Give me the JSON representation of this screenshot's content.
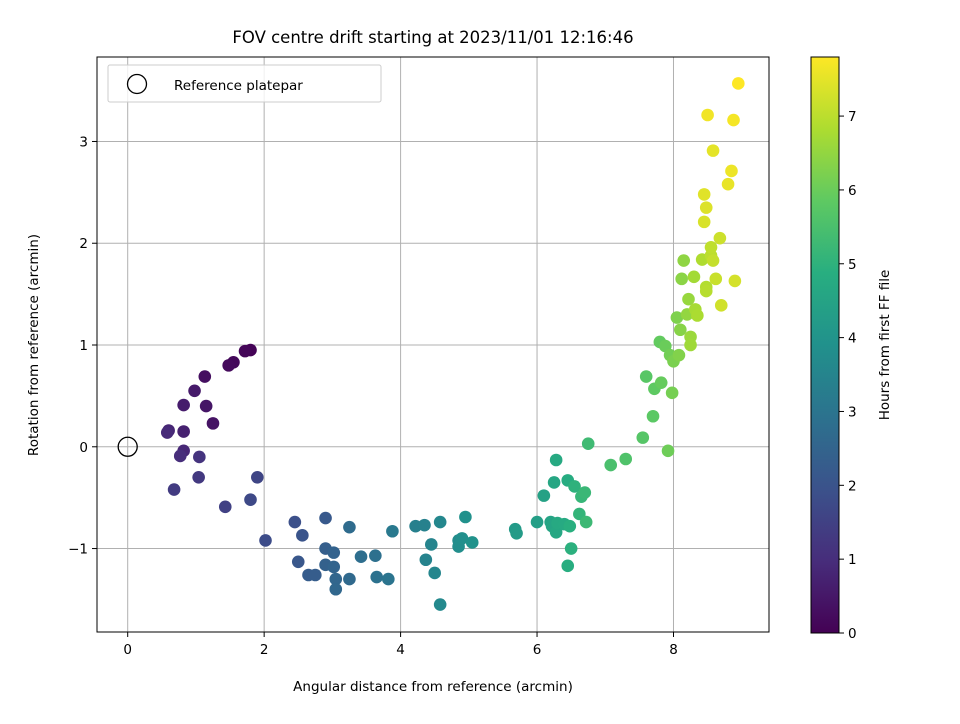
{
  "chart_data": {
    "type": "scatter",
    "title": "FOV centre drift starting at 2023/11/01 12:16:46",
    "xlabel": "Angular distance from reference (arcmin)",
    "ylabel": "Rotation from reference (arcmin)",
    "xlim": [
      -0.45,
      9.4
    ],
    "ylim": [
      -1.82,
      3.83
    ],
    "xticks": [
      0,
      2,
      4,
      6,
      8
    ],
    "yticks": [
      -1,
      0,
      1,
      2,
      3
    ],
    "xtick_labels": [
      "0",
      "2",
      "4",
      "6",
      "8"
    ],
    "ytick_labels": [
      "−1",
      "0",
      "1",
      "2",
      "3"
    ],
    "grid": true,
    "legend": {
      "position": "upper-left",
      "entries": [
        "Reference platepar"
      ]
    },
    "colormap": "viridis",
    "colorbar": {
      "label": "Hours from first FF file",
      "range": [
        0,
        7.8
      ],
      "ticks": [
        0,
        1,
        2,
        3,
        4,
        5,
        6,
        7
      ],
      "tick_labels": [
        "0",
        "1",
        "2",
        "3",
        "4",
        "5",
        "6",
        "7"
      ]
    },
    "reference_point": {
      "x": 0,
      "y": 0
    },
    "points": [
      [
        1.8,
        0.95,
        0.05
      ],
      [
        1.72,
        0.94,
        0.1
      ],
      [
        1.55,
        0.83,
        0.15
      ],
      [
        1.48,
        0.8,
        0.2
      ],
      [
        1.13,
        0.69,
        0.3
      ],
      [
        1.25,
        0.23,
        0.4
      ],
      [
        1.15,
        0.4,
        0.45
      ],
      [
        0.98,
        0.55,
        0.55
      ],
      [
        0.82,
        0.41,
        0.6
      ],
      [
        0.82,
        0.15,
        0.7
      ],
      [
        0.6,
        0.16,
        0.8
      ],
      [
        0.82,
        -0.04,
        0.85
      ],
      [
        0.58,
        0.14,
        0.9
      ],
      [
        0.77,
        -0.09,
        1.0
      ],
      [
        1.05,
        -0.1,
        1.15
      ],
      [
        1.04,
        -0.3,
        1.3
      ],
      [
        0.68,
        -0.42,
        1.35
      ],
      [
        1.43,
        -0.59,
        1.5
      ],
      [
        1.9,
        -0.3,
        1.6
      ],
      [
        1.8,
        -0.52,
        1.7
      ],
      [
        2.02,
        -0.92,
        1.8
      ],
      [
        2.45,
        -0.74,
        1.9
      ],
      [
        2.56,
        -0.87,
        2.0
      ],
      [
        2.5,
        -1.13,
        2.1
      ],
      [
        2.9,
        -0.7,
        2.15
      ],
      [
        2.65,
        -1.26,
        2.25
      ],
      [
        2.75,
        -1.26,
        2.3
      ],
      [
        2.9,
        -1.0,
        2.35
      ],
      [
        2.9,
        -1.16,
        2.4
      ],
      [
        3.02,
        -1.04,
        2.45
      ],
      [
        3.02,
        -1.18,
        2.5
      ],
      [
        3.05,
        -1.3,
        2.55
      ],
      [
        3.05,
        -1.4,
        2.6
      ],
      [
        3.25,
        -1.3,
        2.65
      ],
      [
        3.25,
        -0.79,
        2.7
      ],
      [
        3.42,
        -1.08,
        2.8
      ],
      [
        3.63,
        -1.07,
        2.85
      ],
      [
        3.65,
        -1.28,
        2.9
      ],
      [
        3.82,
        -1.3,
        3.0
      ],
      [
        3.88,
        -0.83,
        3.15
      ],
      [
        4.22,
        -0.78,
        3.35
      ],
      [
        4.35,
        -0.77,
        3.4
      ],
      [
        4.37,
        -1.11,
        3.45
      ],
      [
        4.45,
        -0.96,
        3.5
      ],
      [
        4.5,
        -1.24,
        3.55
      ],
      [
        4.58,
        -0.74,
        3.6
      ],
      [
        4.58,
        -1.55,
        3.65
      ],
      [
        4.85,
        -0.92,
        3.75
      ],
      [
        4.85,
        -0.98,
        3.8
      ],
      [
        4.9,
        -0.9,
        3.85
      ],
      [
        4.95,
        -0.69,
        3.9
      ],
      [
        5.05,
        -0.94,
        3.95
      ],
      [
        5.68,
        -0.81,
        4.2
      ],
      [
        5.7,
        -0.85,
        4.25
      ],
      [
        6.0,
        -0.74,
        4.35
      ],
      [
        6.1,
        -0.48,
        4.45
      ],
      [
        6.2,
        -0.74,
        4.5
      ],
      [
        6.22,
        -0.78,
        4.55
      ],
      [
        6.25,
        -0.35,
        4.6
      ],
      [
        6.28,
        -0.84,
        4.65
      ],
      [
        6.28,
        -0.13,
        4.7
      ],
      [
        6.3,
        -0.75,
        4.72
      ],
      [
        6.4,
        -0.76,
        4.75
      ],
      [
        6.45,
        -0.33,
        4.8
      ],
      [
        6.45,
        -1.17,
        4.85
      ],
      [
        6.48,
        -0.78,
        4.9
      ],
      [
        6.5,
        -1.0,
        4.95
      ],
      [
        6.55,
        -0.39,
        5.0
      ],
      [
        6.62,
        -0.66,
        5.1
      ],
      [
        6.65,
        -0.49,
        5.15
      ],
      [
        6.7,
        -0.45,
        5.2
      ],
      [
        6.72,
        -0.74,
        5.25
      ],
      [
        6.75,
        0.03,
        5.3
      ],
      [
        7.08,
        -0.18,
        5.5
      ],
      [
        7.3,
        -0.12,
        5.6
      ],
      [
        7.55,
        0.09,
        5.7
      ],
      [
        7.6,
        0.69,
        5.75
      ],
      [
        7.7,
        0.3,
        5.8
      ],
      [
        7.72,
        0.57,
        5.85
      ],
      [
        7.8,
        1.03,
        5.9
      ],
      [
        7.82,
        0.63,
        5.95
      ],
      [
        7.88,
        0.99,
        6.0
      ],
      [
        7.92,
        -0.04,
        6.05
      ],
      [
        7.95,
        0.9,
        6.1
      ],
      [
        7.98,
        0.53,
        6.15
      ],
      [
        8.0,
        0.84,
        6.2
      ],
      [
        8.05,
        1.27,
        6.25
      ],
      [
        8.08,
        0.9,
        6.3
      ],
      [
        8.1,
        1.15,
        6.35
      ],
      [
        8.12,
        1.65,
        6.4
      ],
      [
        8.15,
        1.83,
        6.45
      ],
      [
        8.2,
        1.3,
        6.5
      ],
      [
        8.22,
        1.45,
        6.55
      ],
      [
        8.25,
        1.08,
        6.6
      ],
      [
        8.25,
        1.0,
        6.65
      ],
      [
        8.3,
        1.67,
        6.7
      ],
      [
        8.32,
        1.35,
        6.75
      ],
      [
        8.35,
        1.29,
        6.8
      ],
      [
        8.42,
        1.84,
        6.85
      ],
      [
        8.48,
        1.57,
        6.9
      ],
      [
        8.48,
        1.53,
        6.95
      ],
      [
        8.55,
        1.88,
        7.0
      ],
      [
        8.55,
        1.96,
        7.05
      ],
      [
        8.58,
        1.83,
        7.1
      ],
      [
        8.62,
        1.65,
        7.15
      ],
      [
        8.68,
        2.05,
        7.2
      ],
      [
        8.7,
        1.39,
        7.25
      ],
      [
        8.9,
        1.63,
        7.3
      ],
      [
        8.45,
        2.21,
        7.35
      ],
      [
        8.48,
        2.35,
        7.4
      ],
      [
        8.45,
        2.48,
        7.45
      ],
      [
        8.58,
        2.91,
        7.5
      ],
      [
        8.8,
        2.58,
        7.55
      ],
      [
        8.85,
        2.71,
        7.6
      ],
      [
        8.5,
        3.26,
        7.65
      ],
      [
        8.88,
        3.21,
        7.7
      ],
      [
        8.95,
        3.57,
        7.8
      ]
    ]
  }
}
